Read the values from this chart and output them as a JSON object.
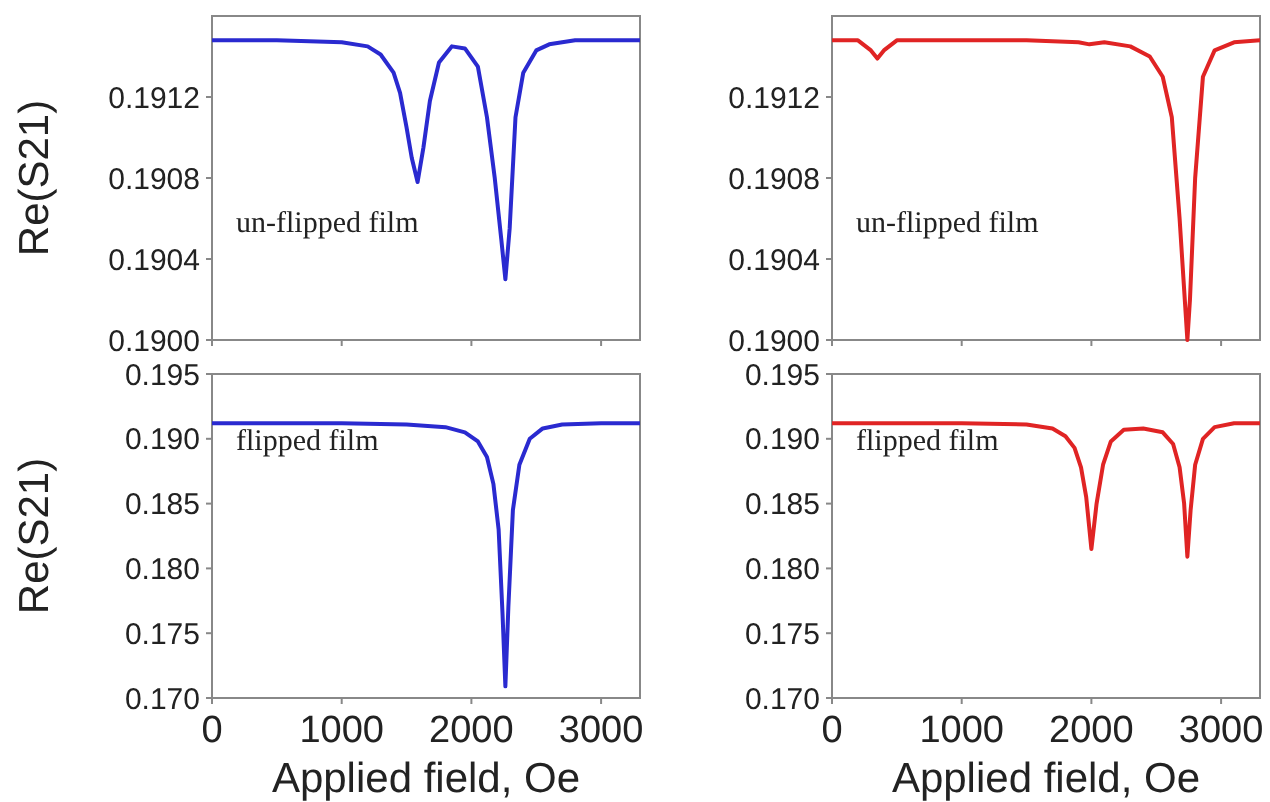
{
  "chart_data": [
    {
      "type": "line",
      "ylabel": "Re(S21)",
      "annotations": [
        "un-flipped film"
      ],
      "tick_labels": "y",
      "xlim": [
        0,
        3300
      ],
      "xticks": [
        0,
        1000,
        2000,
        3000
      ],
      "ylim": [
        0.19,
        0.1916
      ],
      "yticks": [
        {
          "value": 0.19,
          "label": "0.1900"
        },
        {
          "value": 0.1904,
          "label": "0.1904"
        },
        {
          "value": 0.1908,
          "label": "0.1908"
        },
        {
          "value": 0.1912,
          "label": "0.1912"
        }
      ],
      "x": [
        0,
        500,
        1000,
        1200,
        1300,
        1400,
        1450,
        1500,
        1540,
        1585,
        1630,
        1680,
        1750,
        1850,
        1950,
        2050,
        2120,
        2180,
        2230,
        2262,
        2295,
        2340,
        2400,
        2500,
        2600,
        2800,
        3000,
        3300
      ],
      "series": [
        {
          "color": "#2a2ad0",
          "values": [
            0.19148,
            0.19148,
            0.19147,
            0.19145,
            0.19141,
            0.19132,
            0.19122,
            0.19105,
            0.1909,
            0.19078,
            0.19095,
            0.19118,
            0.19137,
            0.19145,
            0.19144,
            0.19135,
            0.1911,
            0.1908,
            0.1905,
            0.1903,
            0.19055,
            0.1911,
            0.19132,
            0.19143,
            0.19146,
            0.19148,
            0.19148,
            0.19148
          ]
        }
      ]
    },
    {
      "type": "line",
      "annotations": [
        "un-flipped film"
      ],
      "tick_labels": "y",
      "xlim": [
        0,
        3300
      ],
      "xticks": [
        0,
        1000,
        2000,
        3000
      ],
      "ylim": [
        0.19,
        0.1916
      ],
      "yticks": [
        {
          "value": 0.19,
          "label": "0.1900"
        },
        {
          "value": 0.1904,
          "label": "0.1904"
        },
        {
          "value": 0.1908,
          "label": "0.1908"
        },
        {
          "value": 0.1912,
          "label": "0.1912"
        }
      ],
      "x": [
        0,
        200,
        300,
        350,
        400,
        500,
        1000,
        1500,
        1900,
        1985,
        2100,
        2300,
        2450,
        2550,
        2620,
        2680,
        2720,
        2740,
        2760,
        2800,
        2860,
        2950,
        3100,
        3300
      ],
      "series": [
        {
          "color": "#e02424",
          "values": [
            0.19148,
            0.19148,
            0.19143,
            0.19139,
            0.19143,
            0.19148,
            0.19148,
            0.19148,
            0.19147,
            0.19146,
            0.19147,
            0.19145,
            0.1914,
            0.1913,
            0.1911,
            0.1906,
            0.1902,
            0.19,
            0.1902,
            0.1908,
            0.1913,
            0.19143,
            0.19147,
            0.19148
          ]
        }
      ]
    },
    {
      "type": "line",
      "ylabel": "Re(S21)",
      "xlabel": "Applied field, Oe",
      "annotations": [
        "flipped film"
      ],
      "xlim": [
        0,
        3300
      ],
      "xticks": [
        0,
        1000,
        2000,
        3000
      ],
      "ylim": [
        0.17,
        0.195
      ],
      "yticks": [
        {
          "value": 0.17,
          "label": "0.170"
        },
        {
          "value": 0.175,
          "label": "0.175"
        },
        {
          "value": 0.18,
          "label": "0.180"
        },
        {
          "value": 0.185,
          "label": "0.185"
        },
        {
          "value": 0.19,
          "label": "0.190"
        },
        {
          "value": 0.195,
          "label": "0.195"
        }
      ],
      "x": [
        0,
        1000,
        1500,
        1800,
        1950,
        2050,
        2120,
        2170,
        2210,
        2240,
        2262,
        2285,
        2320,
        2370,
        2450,
        2550,
        2700,
        3000,
        3300
      ],
      "series": [
        {
          "color": "#2a2ad0",
          "values": [
            0.1912,
            0.1912,
            0.1911,
            0.1909,
            0.1905,
            0.1898,
            0.1886,
            0.1865,
            0.183,
            0.1765,
            0.1709,
            0.177,
            0.1845,
            0.188,
            0.19,
            0.1908,
            0.1911,
            0.1912,
            0.1912
          ]
        }
      ]
    },
    {
      "type": "line",
      "xlabel": "Applied field, Oe",
      "annotations": [
        "flipped film"
      ],
      "xlim": [
        0,
        3300
      ],
      "xticks": [
        0,
        1000,
        2000,
        3000
      ],
      "ylim": [
        0.17,
        0.195
      ],
      "yticks": [
        {
          "value": 0.17,
          "label": "0.170"
        },
        {
          "value": 0.175,
          "label": "0.175"
        },
        {
          "value": 0.18,
          "label": "0.180"
        },
        {
          "value": 0.185,
          "label": "0.185"
        },
        {
          "value": 0.19,
          "label": "0.190"
        },
        {
          "value": 0.195,
          "label": "0.195"
        }
      ],
      "x": [
        0,
        1000,
        1500,
        1700,
        1800,
        1870,
        1920,
        1960,
        2000,
        2040,
        2090,
        2150,
        2250,
        2400,
        2550,
        2630,
        2680,
        2715,
        2740,
        2765,
        2800,
        2860,
        2950,
        3100,
        3300
      ],
      "series": [
        {
          "color": "#e02424",
          "values": [
            0.1912,
            0.1912,
            0.1911,
            0.1908,
            0.1902,
            0.1893,
            0.1878,
            0.1855,
            0.1815,
            0.185,
            0.188,
            0.1898,
            0.1907,
            0.1908,
            0.1905,
            0.1896,
            0.1878,
            0.185,
            0.1809,
            0.1845,
            0.188,
            0.19,
            0.1909,
            0.1912,
            0.1912
          ]
        }
      ]
    }
  ]
}
